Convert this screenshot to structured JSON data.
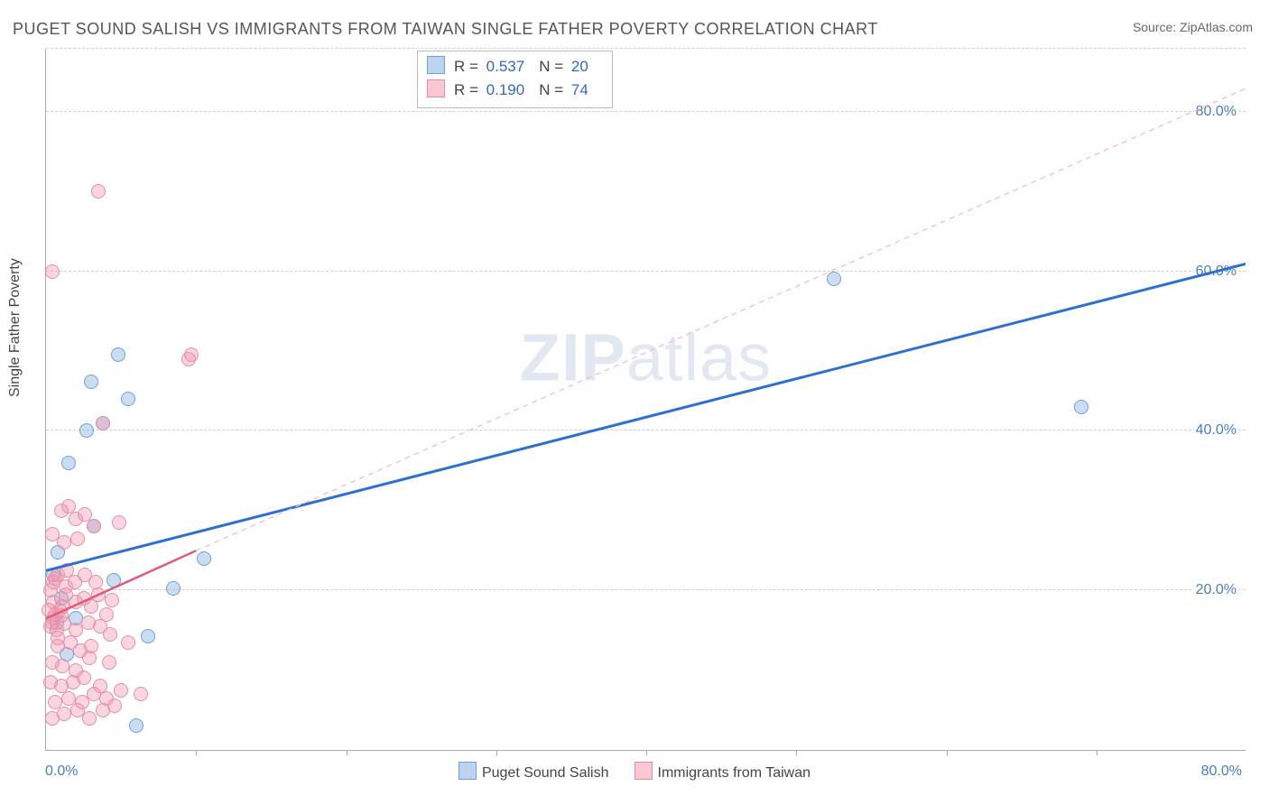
{
  "title": "PUGET SOUND SALISH VS IMMIGRANTS FROM TAIWAN SINGLE FATHER POVERTY CORRELATION CHART",
  "source": "Source: ZipAtlas.com",
  "ylabel": "Single Father Poverty",
  "watermark_a": "ZIP",
  "watermark_b": "atlas",
  "chart": {
    "type": "scatter",
    "background_color": "#ffffff",
    "grid_color": "#d0d0d0",
    "axis_color": "#aaaaaa",
    "tick_label_color": "#4a7ebb",
    "xlim": [
      0,
      80
    ],
    "ylim": [
      0,
      88
    ],
    "x_ticks_minor": [
      10,
      20,
      30,
      40,
      50,
      60,
      70
    ],
    "y_ticks": [
      20,
      40,
      60,
      80
    ],
    "y_tick_labels": [
      "20.0%",
      "40.0%",
      "60.0%",
      "80.0%"
    ],
    "x_min_label": "0.0%",
    "x_max_label": "80.0%",
    "marker_radius": 8,
    "marker_stroke_width": 1.5,
    "series": [
      {
        "id": "salish",
        "label": "Puget Sound Salish",
        "fill": "rgba(140, 180, 225, 0.45)",
        "stroke": "#6f9fd8",
        "swatch_fill": "#bcd4ee",
        "swatch_border": "#6f9fd8",
        "stats": {
          "R": "0.537",
          "N": "20"
        },
        "regression": {
          "x1": 0,
          "y1": 22.5,
          "x2": 80,
          "y2": 61.0,
          "color": "#2f6fd0",
          "width": 3,
          "dash": "none"
        },
        "extrapolation": null,
        "points": [
          [
            0.8,
            24.8
          ],
          [
            1.5,
            36.0
          ],
          [
            2.7,
            40.0
          ],
          [
            3.0,
            46.2
          ],
          [
            4.5,
            21.3
          ],
          [
            5.5,
            44.0
          ],
          [
            6.8,
            14.2
          ],
          [
            8.5,
            20.2
          ],
          [
            10.5,
            24.0
          ],
          [
            6.0,
            3.0
          ],
          [
            52.5,
            59.0
          ],
          [
            69.0,
            43.0
          ],
          [
            3.2,
            28.0
          ],
          [
            1.0,
            19.0
          ],
          [
            2.0,
            16.5
          ],
          [
            0.7,
            16.0
          ],
          [
            1.4,
            12.0
          ],
          [
            4.8,
            49.5
          ],
          [
            3.8,
            41.0
          ],
          [
            0.5,
            22.0
          ]
        ]
      },
      {
        "id": "taiwan",
        "label": "Immigrants from Taiwan",
        "fill": "rgba(240, 150, 175, 0.40)",
        "stroke": "#e88da4",
        "swatch_fill": "#f7c8d4",
        "swatch_border": "#e88da4",
        "stats": {
          "R": "0.190",
          "N": "74"
        },
        "regression": {
          "x1": 0,
          "y1": 16.5,
          "x2": 10,
          "y2": 25.0,
          "color": "#e05a7a",
          "width": 2.5,
          "dash": "none"
        },
        "extrapolation": {
          "x1": 10,
          "y1": 25.0,
          "x2": 80,
          "y2": 83.0,
          "color": "#f0b8c5",
          "width": 1.2,
          "dash": "6 5"
        },
        "points": [
          [
            0.3,
            15.5
          ],
          [
            0.4,
            16.0
          ],
          [
            0.5,
            16.5
          ],
          [
            0.6,
            17.0
          ],
          [
            0.7,
            15.0
          ],
          [
            0.8,
            14.0
          ],
          [
            0.9,
            17.5
          ],
          [
            1.0,
            16.8
          ],
          [
            1.1,
            18.0
          ],
          [
            1.2,
            15.8
          ],
          [
            0.5,
            21.0
          ],
          [
            0.6,
            21.5
          ],
          [
            0.8,
            22.0
          ],
          [
            1.3,
            20.5
          ],
          [
            1.4,
            22.5
          ],
          [
            1.9,
            21.0
          ],
          [
            2.6,
            22.0
          ],
          [
            3.3,
            21.0
          ],
          [
            2.0,
            18.5
          ],
          [
            2.5,
            19.0
          ],
          [
            3.0,
            18.0
          ],
          [
            3.5,
            19.5
          ],
          [
            4.0,
            17.0
          ],
          [
            4.4,
            18.8
          ],
          [
            1.0,
            30.0
          ],
          [
            1.5,
            30.5
          ],
          [
            2.0,
            29.0
          ],
          [
            2.6,
            29.5
          ],
          [
            3.2,
            28.0
          ],
          [
            4.9,
            28.5
          ],
          [
            0.4,
            27.0
          ],
          [
            1.2,
            26.0
          ],
          [
            2.1,
            26.5
          ],
          [
            0.8,
            13.0
          ],
          [
            1.6,
            13.5
          ],
          [
            2.3,
            12.5
          ],
          [
            0.4,
            11.0
          ],
          [
            1.1,
            10.5
          ],
          [
            2.0,
            10.0
          ],
          [
            2.9,
            11.5
          ],
          [
            0.3,
            8.5
          ],
          [
            1.0,
            8.0
          ],
          [
            1.8,
            8.5
          ],
          [
            2.5,
            9.0
          ],
          [
            3.6,
            8.0
          ],
          [
            0.6,
            6.0
          ],
          [
            1.5,
            6.5
          ],
          [
            2.4,
            6.0
          ],
          [
            3.2,
            7.0
          ],
          [
            4.0,
            6.5
          ],
          [
            0.4,
            4.0
          ],
          [
            1.2,
            4.5
          ],
          [
            2.1,
            5.0
          ],
          [
            2.9,
            4.0
          ],
          [
            3.8,
            5.0
          ],
          [
            4.6,
            5.5
          ],
          [
            3.0,
            13.0
          ],
          [
            4.2,
            11.0
          ],
          [
            5.5,
            13.5
          ],
          [
            5.0,
            7.5
          ],
          [
            6.3,
            7.0
          ],
          [
            3.8,
            41.0
          ],
          [
            9.5,
            49.0
          ],
          [
            9.7,
            49.5
          ],
          [
            3.5,
            70.0
          ],
          [
            0.4,
            60.0
          ],
          [
            2.0,
            15.0
          ],
          [
            2.8,
            16.0
          ],
          [
            3.6,
            15.5
          ],
          [
            4.3,
            14.5
          ],
          [
            0.5,
            18.5
          ],
          [
            1.3,
            19.5
          ],
          [
            0.2,
            17.5
          ],
          [
            0.3,
            20.0
          ]
        ]
      }
    ]
  },
  "r_label": "R =",
  "n_label": "N ="
}
